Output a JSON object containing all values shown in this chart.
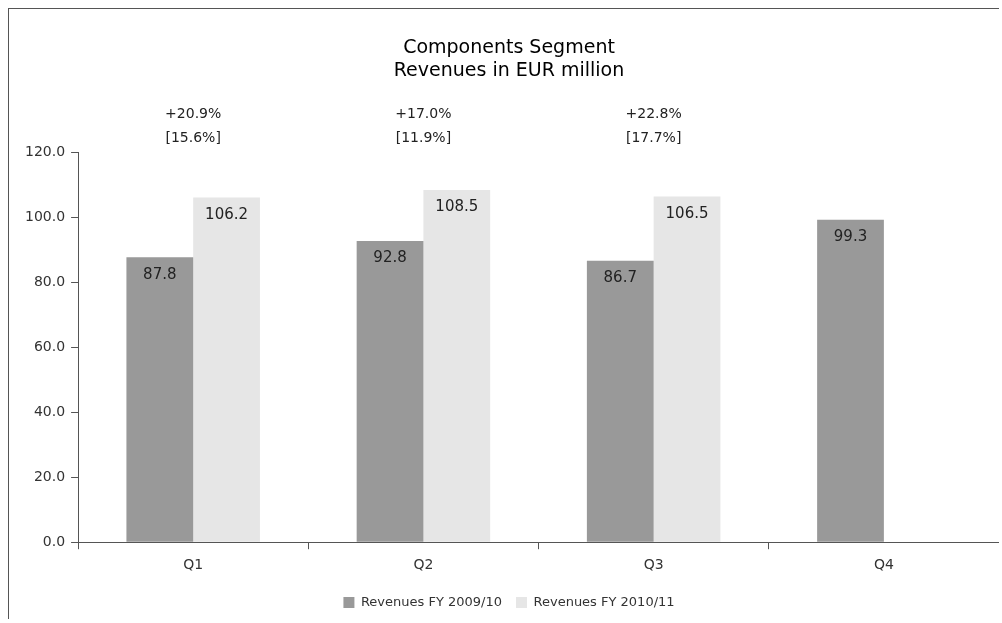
{
  "chart_data": {
    "type": "bar",
    "title": "Components Segment\nRevenues in EUR million",
    "categories": [
      "Q1",
      "Q2",
      "Q3",
      "Q4"
    ],
    "series": [
      {
        "name": "Revenues FY 2009/10",
        "color": "#999999",
        "values": [
          87.8,
          92.8,
          86.7,
          99.3
        ]
      },
      {
        "name": "Revenues FY 2010/11",
        "color": "#e6e6e6",
        "values": [
          106.2,
          108.5,
          106.5,
          null
        ]
      }
    ],
    "ylim": [
      0,
      120
    ],
    "yticks": [
      {
        "value": 0,
        "label": "0.0"
      },
      {
        "value": 20,
        "label": "20.0"
      },
      {
        "value": 40,
        "label": "40.0"
      },
      {
        "value": 60,
        "label": "60.0"
      },
      {
        "value": 80,
        "label": "80.0"
      },
      {
        "value": 100,
        "label": "100.0"
      },
      {
        "value": 120,
        "label": "120.0"
      }
    ],
    "data_labels": true,
    "grid": false,
    "legend": "bottom",
    "annotations": [
      "+20.9%\n[15.6%]",
      "+17.0%\n[11.9%]",
      "+22.8%\n[17.7%]"
    ]
  }
}
